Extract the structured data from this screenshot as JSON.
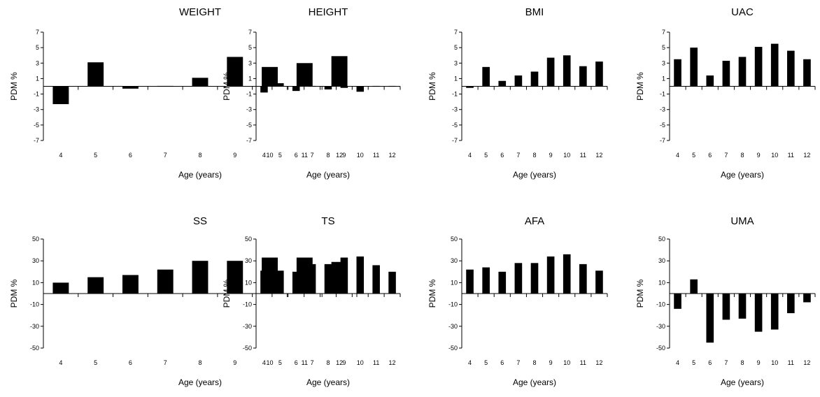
{
  "chart_data": [
    {
      "type": "bar",
      "title": "WEIGHT",
      "xlabel": "Age (years)",
      "ylabel": "PDM %",
      "categories": [
        "4",
        "5",
        "6",
        "7",
        "8",
        "9",
        "10",
        "11",
        "12"
      ],
      "values": [
        -2.3,
        3.1,
        -0.3,
        0.1,
        1.1,
        3.8,
        2.5,
        3.0,
        3.9
      ],
      "ylim": [
        -7,
        7
      ],
      "yticks": [
        7,
        5,
        3,
        1,
        -1,
        -3,
        -5,
        -7
      ],
      "grid": false
    },
    {
      "type": "bar",
      "title": "HEIGHT",
      "xlabel": "Age (years)",
      "ylabel": "PDM %",
      "categories": [
        "4",
        "5",
        "6",
        "7",
        "8",
        "9",
        "10",
        "11",
        "12"
      ],
      "values": [
        -0.8,
        0.4,
        -0.6,
        0.0,
        -0.4,
        -0.2,
        -0.7,
        0.1,
        0.0
      ],
      "ylim": [
        -7,
        7
      ],
      "yticks": [
        7,
        5,
        3,
        1,
        -1,
        -3,
        -5,
        -7
      ],
      "grid": false
    },
    {
      "type": "bar",
      "title": "BMI",
      "xlabel": "Age (years)",
      "ylabel": "PDM %",
      "categories": [
        "4",
        "5",
        "6",
        "7",
        "8",
        "9",
        "10",
        "11",
        "12"
      ],
      "values": [
        -0.2,
        2.5,
        0.7,
        1.4,
        1.9,
        3.7,
        4.0,
        2.6,
        3.2
      ],
      "ylim": [
        -7,
        7
      ],
      "yticks": [
        7,
        5,
        3,
        1,
        -1,
        -3,
        -5,
        -7
      ],
      "grid": false
    },
    {
      "type": "bar",
      "title": "UAC",
      "xlabel": "Age (years)",
      "ylabel": "PDM %",
      "categories": [
        "4",
        "5",
        "6",
        "7",
        "8",
        "9",
        "10",
        "11",
        "12"
      ],
      "values": [
        3.5,
        5.0,
        1.4,
        3.3,
        3.8,
        5.1,
        5.5,
        4.6,
        3.5
      ],
      "ylim": [
        -7,
        7
      ],
      "yticks": [
        7,
        5,
        3,
        1,
        -1,
        -3,
        -5,
        -7
      ],
      "grid": false
    },
    {
      "type": "bar",
      "title": "SS",
      "xlabel": "Age (years)",
      "ylabel": "PDM %",
      "categories": [
        "4",
        "5",
        "6",
        "7",
        "8",
        "9",
        "10",
        "11",
        "12"
      ],
      "values": [
        10,
        15,
        17,
        22,
        30,
        30,
        33,
        33,
        29
      ],
      "ylim": [
        -50,
        50
      ],
      "yticks": [
        50,
        30,
        10,
        -10,
        -30,
        -50
      ],
      "grid": false
    },
    {
      "type": "bar",
      "title": "TS",
      "xlabel": "Age (years)",
      "ylabel": "PDM %",
      "categories": [
        "4",
        "5",
        "6",
        "7",
        "8",
        "9",
        "10",
        "11",
        "12"
      ],
      "values": [
        21,
        21,
        20,
        27,
        27,
        33,
        34,
        26,
        20
      ],
      "ylim": [
        -50,
        50
      ],
      "yticks": [
        50,
        30,
        10,
        -10,
        -30,
        -50
      ],
      "grid": false
    },
    {
      "type": "bar",
      "title": "AFA",
      "xlabel": "Age (years)",
      "ylabel": "PDM %",
      "categories": [
        "4",
        "5",
        "6",
        "7",
        "8",
        "9",
        "10",
        "11",
        "12"
      ],
      "values": [
        22,
        24,
        20,
        28,
        28,
        34,
        36,
        27,
        21
      ],
      "ylim": [
        -50,
        50
      ],
      "yticks": [
        50,
        30,
        10,
        -10,
        -30,
        -50
      ],
      "grid": false
    },
    {
      "type": "bar",
      "title": "UMA",
      "xlabel": "Age (years)",
      "ylabel": "PDM %",
      "categories": [
        "4",
        "5",
        "6",
        "7",
        "8",
        "9",
        "10",
        "11",
        "12"
      ],
      "values": [
        -14,
        13,
        -45,
        -24,
        -23,
        -35,
        -33,
        -18,
        -8
      ],
      "ylim": [
        -50,
        50
      ],
      "yticks": [
        50,
        30,
        10,
        -10,
        -30,
        -50
      ],
      "grid": false
    }
  ]
}
